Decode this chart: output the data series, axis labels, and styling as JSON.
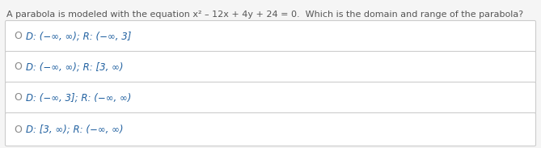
{
  "question": "A parabola is modeled with the equation x² – 12x + 4y + 24 = 0.  Which is the domain and range of the parabola?",
  "options": [
    "D: (−∞, ∞); R: (−∞, 3]",
    "D: (−∞, ∞); R: [3, ∞)",
    "D: (−∞, 3]; R: (−∞, ∞)",
    "D: [3, ∞); R: (−∞, ∞)"
  ],
  "question_color": "#555555",
  "option_text_color": "#2060a0",
  "circle_color": "#888888",
  "bg_color": "#f5f5f5",
  "box_bg": "#ffffff",
  "box_edge": "#cccccc",
  "question_fontsize": 8.0,
  "option_fontsize": 8.5,
  "circle_fontsize": 9.0,
  "fig_width": 6.69,
  "fig_height": 1.83
}
